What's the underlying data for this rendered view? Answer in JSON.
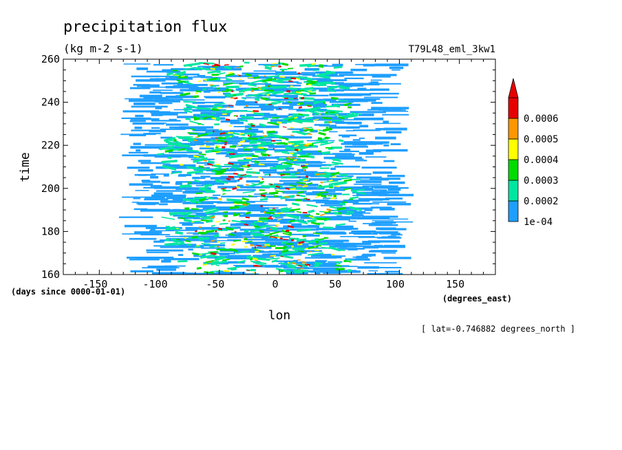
{
  "chart_data": {
    "type": "heatmap",
    "title": "precipitation flux",
    "units": "(kg m-2 s-1)",
    "experiment": "T79L48_eml_3kw1",
    "xlabel": "lon",
    "xunits": "(degrees_east)",
    "ylabel": "time",
    "yunits": "(days since 0000-01-01)",
    "footnote": "[ lat=-0.746882 degrees_north ]",
    "xlim": [
      -180,
      180
    ],
    "ylim": [
      160,
      260
    ],
    "x_ticks": [
      -150,
      -100,
      -50,
      0,
      50,
      100,
      150
    ],
    "x_tick_labels": [
      "-150",
      "-100",
      "-50",
      "0",
      "50",
      "100",
      "150"
    ],
    "y_ticks": [
      160,
      180,
      200,
      220,
      240,
      260
    ],
    "y_tick_labels": [
      "160",
      "180",
      "200",
      "220",
      "240",
      "260"
    ],
    "grid": false,
    "colorbar": {
      "placement": "right",
      "labels": [
        "1e-04",
        "0.0002",
        "0.0003",
        "0.0004",
        "0.0005",
        "0.0006"
      ],
      "levels": [
        0.0001,
        0.0002,
        0.0003,
        0.0004,
        0.0005,
        0.0006
      ],
      "colors": [
        "#1e9fff",
        "#00e6a0",
        "#00dc00",
        "#ffff00",
        "#ff9600",
        "#e60000"
      ],
      "extend": "max"
    },
    "field_summary": {
      "precip_band_lon": [
        -120,
        100
      ],
      "core_lon": [
        -90,
        60
      ],
      "max_center_lon": -15
    }
  }
}
